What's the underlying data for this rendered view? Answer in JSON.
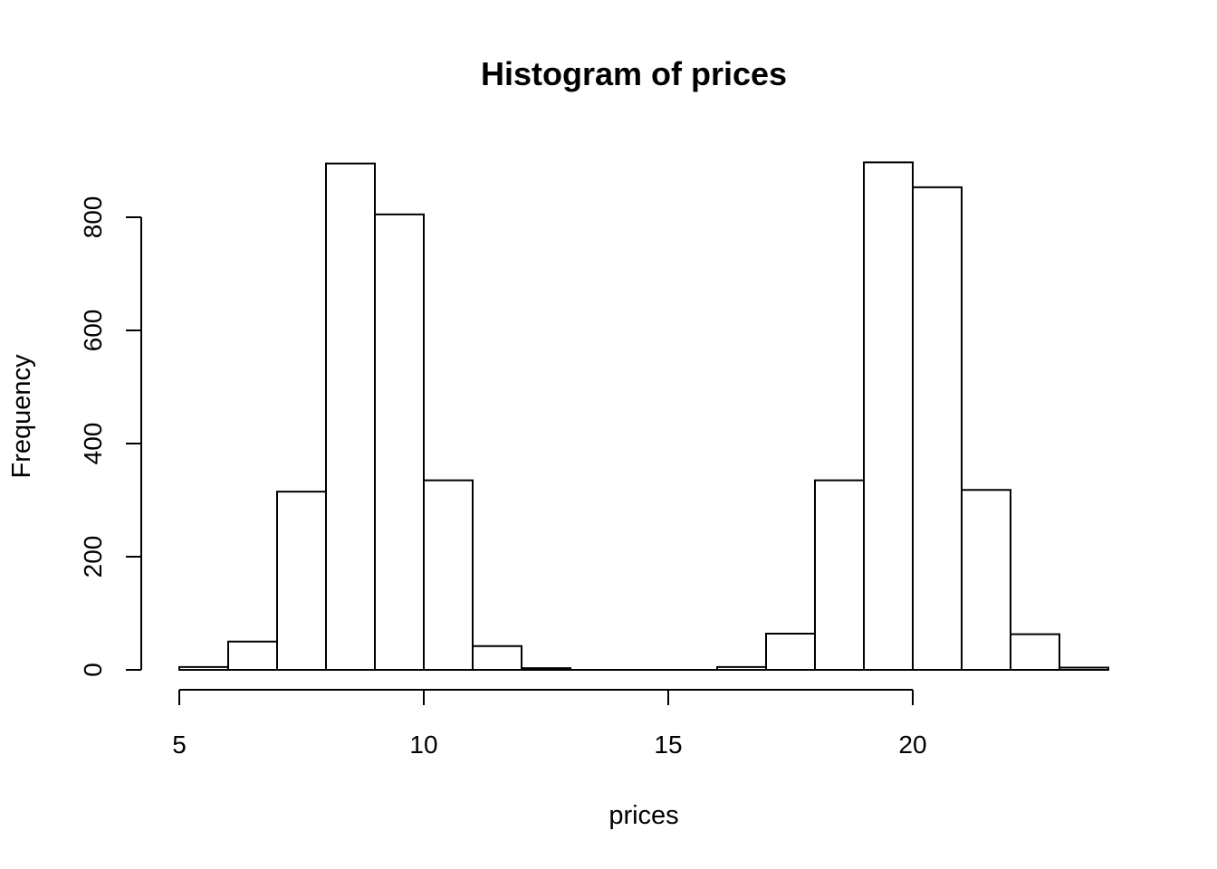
{
  "figure": {
    "background": "#ffffff"
  },
  "chart_data": {
    "type": "bar",
    "subtype": "histogram",
    "title": "Histogram of prices",
    "xlabel": "prices",
    "ylabel": "Frequency",
    "bin_edges": [
      5,
      6,
      7,
      8,
      9,
      10,
      11,
      12,
      13,
      14,
      15,
      16,
      17,
      18,
      19,
      20,
      21,
      22,
      23,
      24
    ],
    "counts": [
      5,
      50,
      315,
      895,
      805,
      335,
      42,
      3,
      0,
      0,
      0,
      5,
      64,
      335,
      897,
      853,
      318,
      63,
      4
    ],
    "xlim": [
      5,
      24
    ],
    "ylim": [
      0,
      800
    ],
    "x_ticks": [
      5,
      10,
      15,
      20
    ],
    "y_ticks": [
      0,
      200,
      400,
      600,
      800
    ],
    "grid": false,
    "legend": "none",
    "bar_fill": "#ffffff",
    "bar_stroke": "#000000",
    "axis_color": "#000000",
    "text_color": "#000000"
  }
}
